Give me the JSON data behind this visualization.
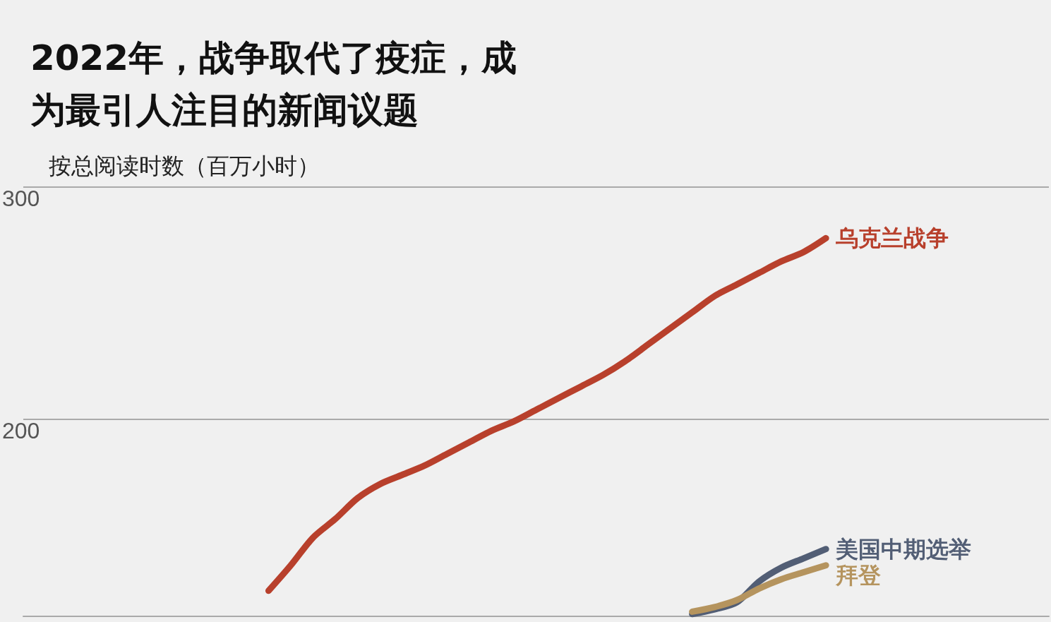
{
  "chart_data": {
    "type": "line",
    "title": "2022年，战争取代了疫症，成为最引人注目的新闻议题",
    "ylabel": "按总阅读时数（百万小时）",
    "categories": [
      null,
      null,
      null,
      null,
      null,
      null,
      null,
      null,
      null,
      null,
      null,
      null,
      null,
      null,
      null,
      null,
      null,
      null,
      null,
      null,
      null,
      null,
      null,
      null,
      null,
      null,
      null,
      null,
      null,
      null,
      null,
      null,
      null,
      null,
      null,
      null,
      null,
      null,
      null,
      null,
      null,
      null,
      null,
      null,
      null,
      null,
      null
    ],
    "series": [
      {
        "name": "乌克兰战争",
        "color": "#b8402c",
        "values": [
          null,
          null,
          null,
          null,
          null,
          null,
          null,
          null,
          null,
          null,
          null,
          126,
          137,
          149,
          157,
          166,
          172,
          176,
          180,
          185,
          190,
          195,
          199,
          204,
          209,
          214,
          219,
          225,
          232,
          239,
          246,
          253,
          258,
          263,
          268,
          272,
          278,
          null,
          null,
          null,
          null,
          null,
          null,
          null,
          null,
          null,
          null
        ]
      },
      {
        "name": "美国中期选举",
        "color": "#525e75",
        "values": [
          null,
          null,
          null,
          null,
          null,
          null,
          null,
          null,
          null,
          null,
          null,
          null,
          null,
          null,
          null,
          null,
          null,
          null,
          null,
          null,
          null,
          null,
          null,
          null,
          null,
          null,
          null,
          null,
          null,
          null,
          116,
          118,
          121,
          130,
          136,
          140,
          144,
          null,
          null,
          null,
          null,
          null,
          null,
          null,
          null,
          null,
          null
        ]
      },
      {
        "name": "拜登",
        "color": "#b5945e",
        "values": [
          null,
          null,
          null,
          null,
          null,
          null,
          null,
          null,
          null,
          null,
          null,
          null,
          null,
          null,
          null,
          null,
          null,
          null,
          null,
          null,
          null,
          null,
          null,
          null,
          null,
          null,
          null,
          null,
          null,
          null,
          117,
          119,
          122,
          127,
          131,
          134,
          137,
          null,
          null,
          null,
          null,
          null,
          null,
          null,
          null,
          null,
          null
        ]
      }
    ],
    "ylim": [
      115,
      300
    ],
    "yticks": [
      200,
      300
    ],
    "grid": "y",
    "legend": false,
    "marker": "none",
    "line_style": "solid"
  }
}
